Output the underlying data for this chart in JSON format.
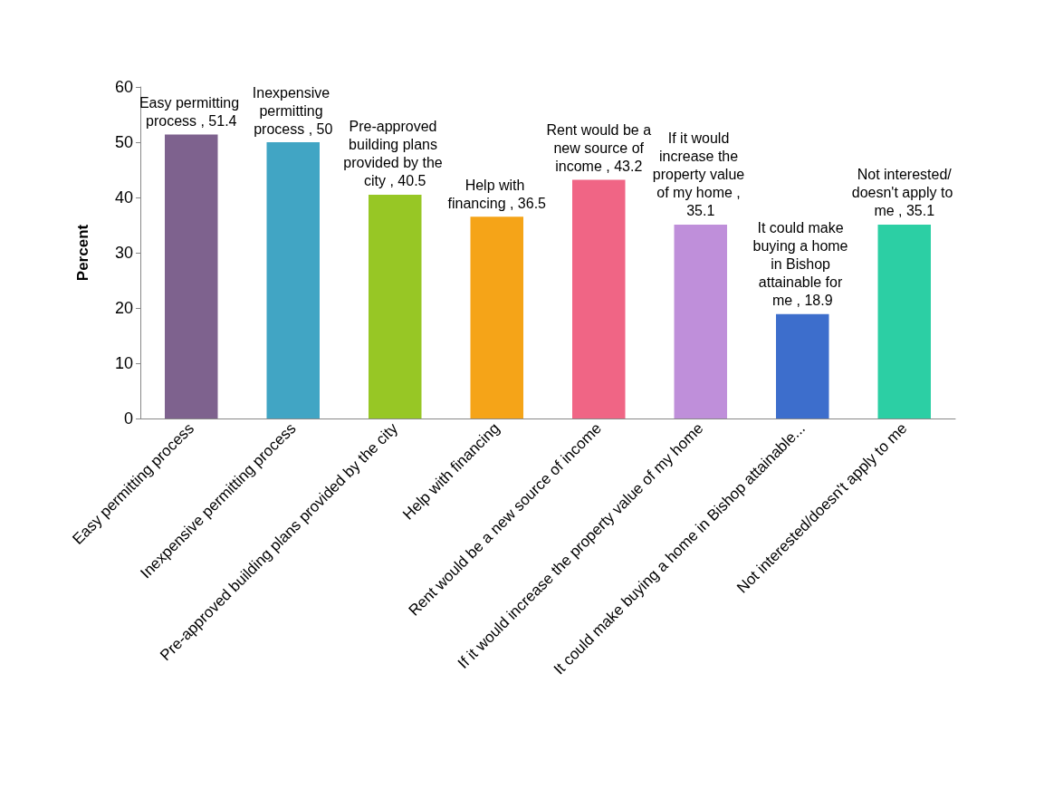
{
  "chart_data": {
    "type": "bar",
    "ylabel": "Percent",
    "categories": [
      "Easy permitting process",
      "Inexpensive permitting process",
      "Pre-approved building plans provided by the city",
      "Help with financing",
      "Rent would be a new source of income",
      "If it would increase the property value of my home",
      "It could make buying a home in Bishop attainable...",
      "Not interested/doesn't apply to me"
    ],
    "values": [
      51.4,
      50,
      40.5,
      36.5,
      43.2,
      35.1,
      18.9,
      35.1
    ],
    "colors": [
      "#7e628e",
      "#41a5c4",
      "#97c725",
      "#f5a418",
      "#f06585",
      "#bf8fda",
      "#3d6ecc",
      "#2ccfa4"
    ],
    "value_labels": [
      "Easy permitting process , 51.4",
      "Inexpensive permitting process , 50",
      "Pre-approved building plans provided by the city , 40.5",
      "Help with financing , 36.5",
      "Rent would be a new source of income , 43.2",
      "If it would increase the property value of my home , 35.1",
      "It could make buying a home in Bishop attainable for me , 18.9",
      "Not interested/doesn't apply to me , 35.1"
    ],
    "ylim": [
      0,
      60
    ],
    "yticks": [
      0,
      10,
      20,
      30,
      40,
      50,
      60
    ],
    "grid": false
  }
}
